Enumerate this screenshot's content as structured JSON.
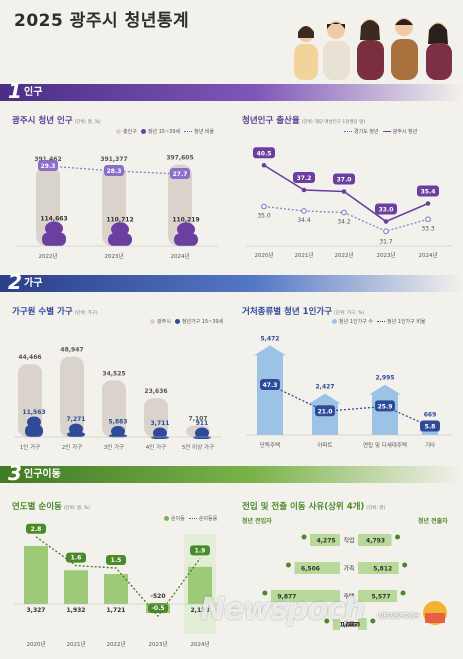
{
  "title": "2025 광주시 청년통계",
  "colors": {
    "population": "#8a5bb3",
    "household": "#5a7ac8",
    "migration": "#7bb34a"
  },
  "sections": [
    {
      "num": "1",
      "label": "인구"
    },
    {
      "num": "2",
      "label": "가구"
    },
    {
      "num": "3",
      "label": "인구이동"
    }
  ],
  "pop_chart": {
    "title": "광주시 청년 인구",
    "unit": "(단위: 명, %)",
    "legend": [
      "총인구",
      "청년 15~39세",
      "청년 비율"
    ],
    "chart_data": {
      "type": "bar",
      "categories": [
        "2022년",
        "2023년",
        "2024년"
      ],
      "series": [
        {
          "name": "총인구",
          "values": [
            391462,
            391377,
            397605
          ]
        },
        {
          "name": "청년 15~39세",
          "values": [
            114663,
            110712,
            110219
          ]
        },
        {
          "name": "청년 비율",
          "values": [
            29.3,
            28.3,
            27.7
          ]
        }
      ],
      "labels": {
        "total": [
          "391,462",
          "391,377",
          "397,605"
        ],
        "youth": [
          "114,663",
          "110,712",
          "110,219"
        ],
        "ratio": [
          "29.3",
          "28.3",
          "27.7"
        ]
      }
    }
  },
  "birth_chart": {
    "title": "청년인구 출산율",
    "unit": "(단위: 해당 여성인구 1천명당 명)",
    "legend": [
      "경기도 청년",
      "광주시 청년"
    ],
    "chart_data": {
      "type": "line",
      "categories": [
        "2020년",
        "2021년",
        "2022년",
        "2023년",
        "2024년"
      ],
      "series": [
        {
          "name": "광주시 청년",
          "values": [
            40.5,
            37.2,
            37.0,
            33.0,
            35.4
          ]
        },
        {
          "name": "경기도 청년",
          "values": [
            35.0,
            34.4,
            34.2,
            31.7,
            33.3
          ]
        }
      ],
      "labels": {
        "gwangju": [
          "40.5",
          "37.2",
          "37.0",
          "33.0",
          "35.4"
        ],
        "gyeonggi": [
          "35.0",
          "34.4",
          "34.2",
          "31.7",
          "33.3"
        ]
      }
    }
  },
  "household_chart": {
    "title": "가구원 수별 가구",
    "unit": "(단위: 가구)",
    "legend": [
      "광주시",
      "청년가구 15~39세"
    ],
    "chart_data": {
      "type": "bar",
      "categories": [
        "1인 가구",
        "2인 가구",
        "3인 가구",
        "4인 가구",
        "5인 이상 가구"
      ],
      "series": [
        {
          "name": "광주시",
          "values": [
            44466,
            48947,
            34525,
            23636,
            7107
          ]
        },
        {
          "name": "청년가구 15~39세",
          "values": [
            11563,
            7271,
            5883,
            3711,
            911
          ]
        }
      ],
      "labels": {
        "total": [
          "44,466",
          "48,947",
          "34,525",
          "23,636",
          "7,107"
        ],
        "youth": [
          "11,563",
          "7,271",
          "5,883",
          "3,711",
          "911"
        ]
      }
    }
  },
  "dwelling_chart": {
    "title": "거처종류별 청년 1인가구",
    "unit": "(단위: 가구, %)",
    "legend": [
      "청년 1인가구 수",
      "청년 1인가구 비율"
    ],
    "chart_data": {
      "type": "bar",
      "categories": [
        "단독주택",
        "아파트",
        "연립 및 다세대주택",
        "기타"
      ],
      "series": [
        {
          "name": "청년 1인가구 수",
          "values": [
            5472,
            2427,
            2995,
            669
          ]
        },
        {
          "name": "청년 1인가구 비율",
          "values": [
            47.3,
            21.0,
            25.9,
            5.8
          ]
        }
      ],
      "labels": {
        "count": [
          "5,472",
          "2,427",
          "2,995",
          "669"
        ],
        "ratio": [
          "47.3",
          "21.0",
          "25.9",
          "5.8"
        ]
      }
    }
  },
  "migration_chart": {
    "title": "연도별 순이동",
    "unit": "(단위: 명, %)",
    "legend": [
      "순이동",
      "순이동률"
    ],
    "chart_data": {
      "type": "bar",
      "categories": [
        "2020년",
        "2021년",
        "2022년",
        "2023년",
        "2024년"
      ],
      "series": [
        {
          "name": "순이동",
          "values": [
            3327,
            1932,
            1721,
            -520,
            2133
          ]
        },
        {
          "name": "순이동률",
          "values": [
            2.8,
            1.6,
            1.5,
            -0.5,
            1.9
          ]
        }
      ],
      "labels": {
        "net": [
          "3,327",
          "1,932",
          "1,721",
          "-520",
          "2,133"
        ],
        "rate": [
          "2.8",
          "1.6",
          "1.5",
          "-0.5",
          "1.9"
        ]
      }
    }
  },
  "reason_chart": {
    "title": "전입 및 전출 이동 사유(상위 4개)",
    "unit": "(단위: 명)",
    "in_label": "청년 전입자",
    "out_label": "청년 전출자",
    "chart_data": {
      "type": "table",
      "categories": [
        "직업",
        "가족",
        "주택",
        "교육"
      ],
      "series": [
        {
          "name": "청년 전입자",
          "values": [
            4275,
            6506,
            9877,
            1027
          ]
        },
        {
          "name": "청년 전출자",
          "values": [
            4793,
            5812,
            5577,
            1263
          ]
        }
      ],
      "labels": {
        "in": [
          "4,275",
          "6,506",
          "9,877",
          "1,027"
        ],
        "out": [
          "4,793",
          "5,812",
          "5,577",
          "1,263"
        ]
      }
    }
  },
  "watermark": {
    "text": "Newspoch",
    "sub": "NEWSPOCH"
  }
}
